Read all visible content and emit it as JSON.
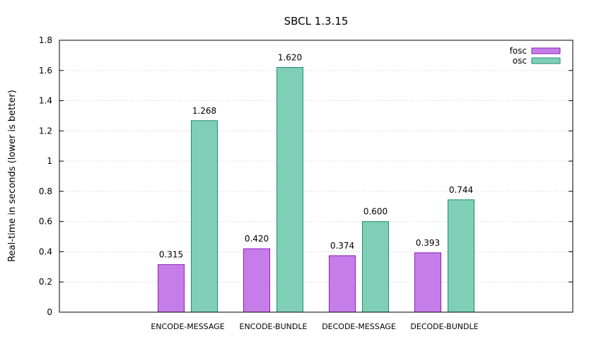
{
  "chart_data": {
    "type": "bar",
    "title": "SBCL 1.3.15",
    "xlabel": "",
    "ylabel": "Real-time in seconds (lower is better)",
    "categories": [
      "ENCODE-MESSAGE",
      "ENCODE-BUNDLE",
      "DECODE-MESSAGE",
      "DECODE-BUNDLE"
    ],
    "series": [
      {
        "name": "fosc",
        "values": [
          0.315,
          0.42,
          0.374,
          0.393
        ],
        "labels": [
          "0.315",
          "0.420",
          "0.374",
          "0.393"
        ],
        "color": "#c77de9",
        "stroke": "#8a1fb8"
      },
      {
        "name": "osc",
        "values": [
          1.268,
          1.62,
          0.6,
          0.744
        ],
        "labels": [
          "1.268",
          "1.620",
          "0.600",
          "0.744"
        ],
        "color": "#7fcfb7",
        "stroke": "#1f8f6f"
      }
    ],
    "ylim": [
      0,
      1.8
    ],
    "yticks": [
      "0",
      "0.2",
      "0.4",
      "0.6",
      "0.8",
      "1",
      "1.2",
      "1.4",
      "1.6",
      "1.8"
    ],
    "grid": true,
    "legend_position": "top-right"
  }
}
